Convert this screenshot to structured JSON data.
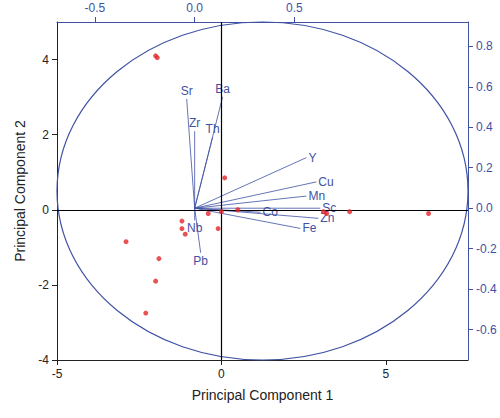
{
  "chart_data": {
    "type": "biplot",
    "x_label": "Principal Component 1",
    "y_label": "Principal Component 2",
    "xlim": [
      -5,
      7.5
    ],
    "xticks": [
      -5,
      0,
      5
    ],
    "ylim": [
      -4,
      5
    ],
    "yticks": [
      -4,
      -2,
      0,
      2,
      4
    ],
    "x2lim": [
      -0.69,
      1.37
    ],
    "x2ticks": [
      -0.5,
      {
        "value": 0,
        "label": "0.0"
      },
      0.5
    ],
    "y2lim": [
      -0.75,
      0.92
    ],
    "y2ticks": [
      -0.6,
      -0.4,
      -0.2,
      {
        "value": 0,
        "label": "0.0"
      },
      0.2,
      0.4,
      0.6,
      0.8
    ],
    "points": {
      "color": "#e3262b",
      "x": [
        -2.0,
        -1.95,
        0.1,
        -1.2,
        -1.2,
        -1.1,
        -0.4,
        0.0,
        0.5,
        -2.9,
        -1.9,
        -2.0,
        -2.3,
        3.1,
        3.2,
        3.9,
        6.3,
        -0.1
      ],
      "y": [
        4.1,
        4.05,
        0.85,
        -0.3,
        -0.5,
        -0.65,
        -0.1,
        -0.05,
        0.0,
        -0.85,
        -1.3,
        -1.9,
        -2.75,
        -0.05,
        -0.1,
        -0.05,
        -0.1,
        -0.5
      ]
    },
    "loadings": {
      "color": "#3f51a3",
      "axis": "y2",
      "vectors": [
        {
          "label": "Sr",
          "x": -0.04,
          "y": 0.54
        },
        {
          "label": "Ba",
          "x": 0.14,
          "y": 0.55
        },
        {
          "label": "Zr",
          "x": 0.0,
          "y": 0.38
        },
        {
          "label": "Th",
          "x": 0.09,
          "y": 0.35
        },
        {
          "label": "Y",
          "x": 0.56,
          "y": 0.25
        },
        {
          "label": "Cu",
          "x": 0.61,
          "y": 0.13
        },
        {
          "label": "Mn",
          "x": 0.56,
          "y": 0.06
        },
        {
          "label": "Sc",
          "x": 0.63,
          "y": 0.0
        },
        {
          "label": "Zn",
          "x": 0.62,
          "y": -0.05
        },
        {
          "label": "Co",
          "x": 0.33,
          "y": -0.02
        },
        {
          "label": "Fe",
          "x": 0.53,
          "y": -0.1
        },
        {
          "label": "Nb",
          "x": 0.0,
          "y": -0.06
        },
        {
          "label": "Pb",
          "x": 0.03,
          "y": -0.22
        }
      ]
    },
    "grid": false
  }
}
